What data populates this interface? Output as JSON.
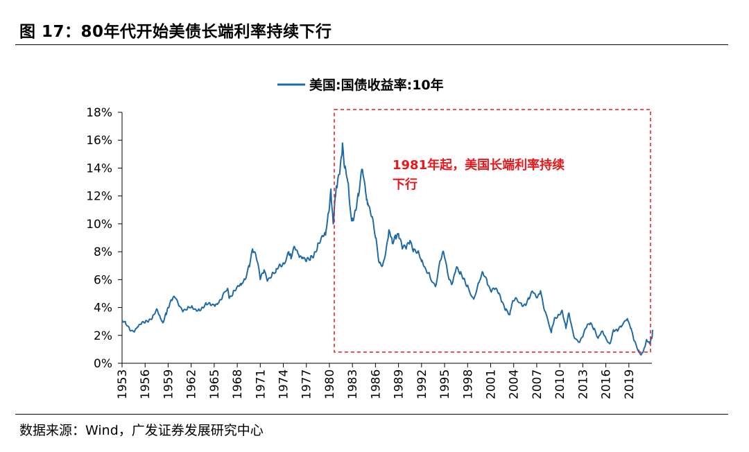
{
  "header": {
    "title": "图 17：80年代开始美债长端利率持续下行"
  },
  "footer": {
    "source": "数据来源：Wind，广发证券发展研究中心"
  },
  "colors": {
    "series": "#1f6aa5",
    "annotation": "#e8171b"
  },
  "chart_data": {
    "type": "line",
    "title": "",
    "legend": {
      "position": "top-center",
      "entries": [
        "美国:国债收益率:10年"
      ]
    },
    "ylabel": "",
    "xlabel": "",
    "ylim": [
      0,
      18
    ],
    "xlim": [
      1953,
      2022
    ],
    "y_ticks": [
      "0%",
      "2%",
      "4%",
      "6%",
      "8%",
      "10%",
      "12%",
      "14%",
      "16%",
      "18%"
    ],
    "x_ticks": [
      "1953",
      "1956",
      "1959",
      "1962",
      "1965",
      "1968",
      "1971",
      "1974",
      "1977",
      "1980",
      "1983",
      "1986",
      "1989",
      "1992",
      "1995",
      "1998",
      "2001",
      "2004",
      "2007",
      "2010",
      "2013",
      "2016",
      "2019"
    ],
    "series": [
      {
        "name": "美国:国债收益率:10年",
        "points": [
          [
            1953.0,
            3.1
          ],
          [
            1953.5,
            2.8
          ],
          [
            1954.0,
            2.4
          ],
          [
            1954.5,
            2.3
          ],
          [
            1955.0,
            2.6
          ],
          [
            1955.5,
            2.8
          ],
          [
            1956.0,
            2.9
          ],
          [
            1956.5,
            3.1
          ],
          [
            1957.0,
            3.4
          ],
          [
            1957.5,
            3.9
          ],
          [
            1958.0,
            3.2
          ],
          [
            1958.3,
            2.9
          ],
          [
            1958.7,
            3.6
          ],
          [
            1959.0,
            4.0
          ],
          [
            1959.5,
            4.5
          ],
          [
            1959.9,
            4.7
          ],
          [
            1960.5,
            4.1
          ],
          [
            1961.0,
            3.8
          ],
          [
            1961.5,
            3.9
          ],
          [
            1962.0,
            4.0
          ],
          [
            1962.5,
            3.9
          ],
          [
            1963.0,
            3.9
          ],
          [
            1963.5,
            4.0
          ],
          [
            1964.0,
            4.2
          ],
          [
            1964.5,
            4.2
          ],
          [
            1965.0,
            4.2
          ],
          [
            1965.5,
            4.3
          ],
          [
            1966.0,
            4.6
          ],
          [
            1966.7,
            5.3
          ],
          [
            1967.0,
            4.7
          ],
          [
            1967.5,
            5.2
          ],
          [
            1968.0,
            5.5
          ],
          [
            1968.5,
            5.6
          ],
          [
            1969.0,
            6.0
          ],
          [
            1969.5,
            7.0
          ],
          [
            1970.0,
            8.2
          ],
          [
            1970.5,
            7.5
          ],
          [
            1971.0,
            6.0
          ],
          [
            1971.5,
            6.7
          ],
          [
            1972.0,
            6.0
          ],
          [
            1972.5,
            6.3
          ],
          [
            1973.0,
            6.5
          ],
          [
            1973.5,
            7.1
          ],
          [
            1974.0,
            7.2
          ],
          [
            1974.7,
            8.0
          ],
          [
            1975.0,
            7.5
          ],
          [
            1975.5,
            8.3
          ],
          [
            1976.0,
            7.8
          ],
          [
            1976.5,
            7.6
          ],
          [
            1977.0,
            7.3
          ],
          [
            1977.5,
            7.4
          ],
          [
            1978.0,
            7.8
          ],
          [
            1978.5,
            8.6
          ],
          [
            1979.0,
            9.1
          ],
          [
            1979.5,
            9.2
          ],
          [
            1979.9,
            10.8
          ],
          [
            1980.2,
            12.5
          ],
          [
            1980.5,
            10.0
          ],
          [
            1980.8,
            12.0
          ],
          [
            1981.0,
            12.6
          ],
          [
            1981.4,
            14.0
          ],
          [
            1981.7,
            15.8
          ],
          [
            1982.0,
            14.0
          ],
          [
            1982.4,
            13.0
          ],
          [
            1982.8,
            10.6
          ],
          [
            1983.0,
            10.4
          ],
          [
            1983.4,
            11.0
          ],
          [
            1983.8,
            12.0
          ],
          [
            1984.3,
            13.9
          ],
          [
            1984.8,
            12.0
          ],
          [
            1985.0,
            11.5
          ],
          [
            1985.5,
            10.5
          ],
          [
            1986.0,
            9.0
          ],
          [
            1986.5,
            7.2
          ],
          [
            1987.0,
            7.2
          ],
          [
            1987.5,
            8.6
          ],
          [
            1987.8,
            9.5
          ],
          [
            1988.2,
            8.6
          ],
          [
            1988.6,
            9.2
          ],
          [
            1989.0,
            9.3
          ],
          [
            1989.5,
            8.2
          ],
          [
            1990.0,
            8.2
          ],
          [
            1990.5,
            8.8
          ],
          [
            1991.0,
            8.2
          ],
          [
            1991.5,
            8.0
          ],
          [
            1992.0,
            7.3
          ],
          [
            1992.5,
            6.8
          ],
          [
            1993.0,
            6.5
          ],
          [
            1993.8,
            5.5
          ],
          [
            1994.5,
            7.4
          ],
          [
            1994.9,
            7.9
          ],
          [
            1995.5,
            6.2
          ],
          [
            1996.0,
            5.7
          ],
          [
            1996.5,
            6.8
          ],
          [
            1997.0,
            6.4
          ],
          [
            1997.5,
            6.1
          ],
          [
            1998.0,
            5.6
          ],
          [
            1998.8,
            4.6
          ],
          [
            1999.5,
            5.8
          ],
          [
            2000.0,
            6.5
          ],
          [
            2000.5,
            6.0
          ],
          [
            2001.0,
            5.2
          ],
          [
            2001.5,
            5.3
          ],
          [
            2002.0,
            5.0
          ],
          [
            2002.5,
            4.4
          ],
          [
            2003.0,
            3.9
          ],
          [
            2003.5,
            3.5
          ],
          [
            2003.8,
            4.3
          ],
          [
            2004.3,
            4.7
          ],
          [
            2005.0,
            4.3
          ],
          [
            2005.5,
            4.2
          ],
          [
            2006.0,
            4.6
          ],
          [
            2006.5,
            5.1
          ],
          [
            2007.0,
            4.7
          ],
          [
            2007.5,
            5.2
          ],
          [
            2008.0,
            3.8
          ],
          [
            2008.9,
            2.2
          ],
          [
            2009.3,
            3.2
          ],
          [
            2009.8,
            3.5
          ],
          [
            2010.3,
            3.8
          ],
          [
            2010.8,
            2.5
          ],
          [
            2011.2,
            3.6
          ],
          [
            2011.8,
            2.0
          ],
          [
            2012.5,
            1.5
          ],
          [
            2013.0,
            1.9
          ],
          [
            2013.5,
            2.6
          ],
          [
            2014.0,
            2.9
          ],
          [
            2014.5,
            2.5
          ],
          [
            2015.0,
            1.8
          ],
          [
            2015.5,
            2.3
          ],
          [
            2016.0,
            1.8
          ],
          [
            2016.5,
            1.4
          ],
          [
            2017.0,
            2.4
          ],
          [
            2017.5,
            2.3
          ],
          [
            2018.0,
            2.6
          ],
          [
            2018.8,
            3.2
          ],
          [
            2019.3,
            2.5
          ],
          [
            2019.7,
            1.6
          ],
          [
            2020.2,
            0.9
          ],
          [
            2020.6,
            0.6
          ],
          [
            2021.0,
            1.1
          ],
          [
            2021.3,
            1.7
          ],
          [
            2021.7,
            1.4
          ],
          [
            2022.0,
            1.8
          ],
          [
            2022.1,
            2.4
          ]
        ]
      }
    ],
    "annotation": {
      "box_range_x": [
        1981,
        2022
      ],
      "box_range_y": [
        0.7,
        18
      ],
      "text_line1_bold": "1981",
      "text_line1_rest": "年起，美国长端利率持续",
      "text_line2": "下行"
    }
  }
}
